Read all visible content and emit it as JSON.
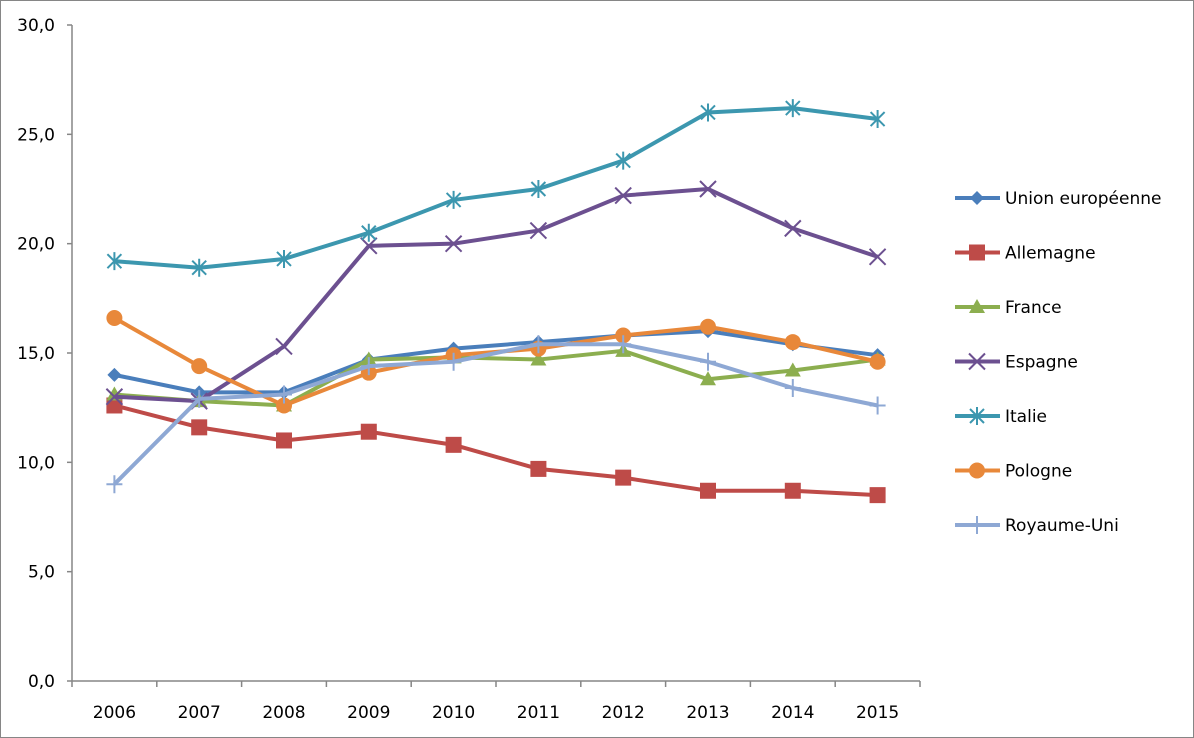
{
  "chart_data": {
    "type": "line",
    "title": "",
    "xlabel": "",
    "ylabel": "",
    "ylim": [
      0,
      30
    ],
    "y_ticks": [
      "0,0",
      "5,0",
      "10,0",
      "15,0",
      "20,0",
      "25,0",
      "30,0"
    ],
    "y_tick_values": [
      0,
      5,
      10,
      15,
      20,
      25,
      30
    ],
    "categories": [
      "2006",
      "2007",
      "2008",
      "2009",
      "2010",
      "2011",
      "2012",
      "2013",
      "2014",
      "2015"
    ],
    "grid": false,
    "legend_position": "right",
    "series": [
      {
        "name": "Union européenne",
        "color": "#4A7EBB",
        "marker": "diamond",
        "values": [
          14.0,
          13.2,
          13.2,
          14.7,
          15.2,
          15.5,
          15.8,
          16.0,
          15.4,
          14.9
        ]
      },
      {
        "name": "Allemagne",
        "color": "#BE4B48",
        "marker": "square",
        "values": [
          12.6,
          11.6,
          11.0,
          11.4,
          10.8,
          9.7,
          9.3,
          8.7,
          8.7,
          8.5
        ]
      },
      {
        "name": "France",
        "color": "#8CAE4F",
        "marker": "triangle",
        "values": [
          13.1,
          12.8,
          12.6,
          14.7,
          14.8,
          14.7,
          15.1,
          13.8,
          14.2,
          14.7
        ]
      },
      {
        "name": "Espagne",
        "color": "#6C5090",
        "marker": "x",
        "values": [
          13.0,
          12.8,
          15.3,
          19.9,
          20.0,
          20.6,
          22.2,
          22.5,
          20.7,
          19.4
        ]
      },
      {
        "name": "Italie",
        "color": "#3C97AF",
        "marker": "asterisk",
        "values": [
          19.2,
          18.9,
          19.3,
          20.5,
          22.0,
          22.5,
          23.8,
          26.0,
          26.2,
          25.7
        ]
      },
      {
        "name": "Pologne",
        "color": "#E8883A",
        "marker": "circle",
        "values": [
          16.6,
          14.4,
          12.6,
          14.1,
          14.9,
          15.2,
          15.8,
          16.2,
          15.5,
          14.6
        ]
      },
      {
        "name": "Royaume-Uni",
        "color": "#8EA8D4",
        "marker": "plus",
        "values": [
          9.0,
          12.9,
          13.1,
          14.4,
          14.6,
          15.4,
          15.4,
          14.6,
          13.4,
          12.6
        ]
      }
    ]
  }
}
